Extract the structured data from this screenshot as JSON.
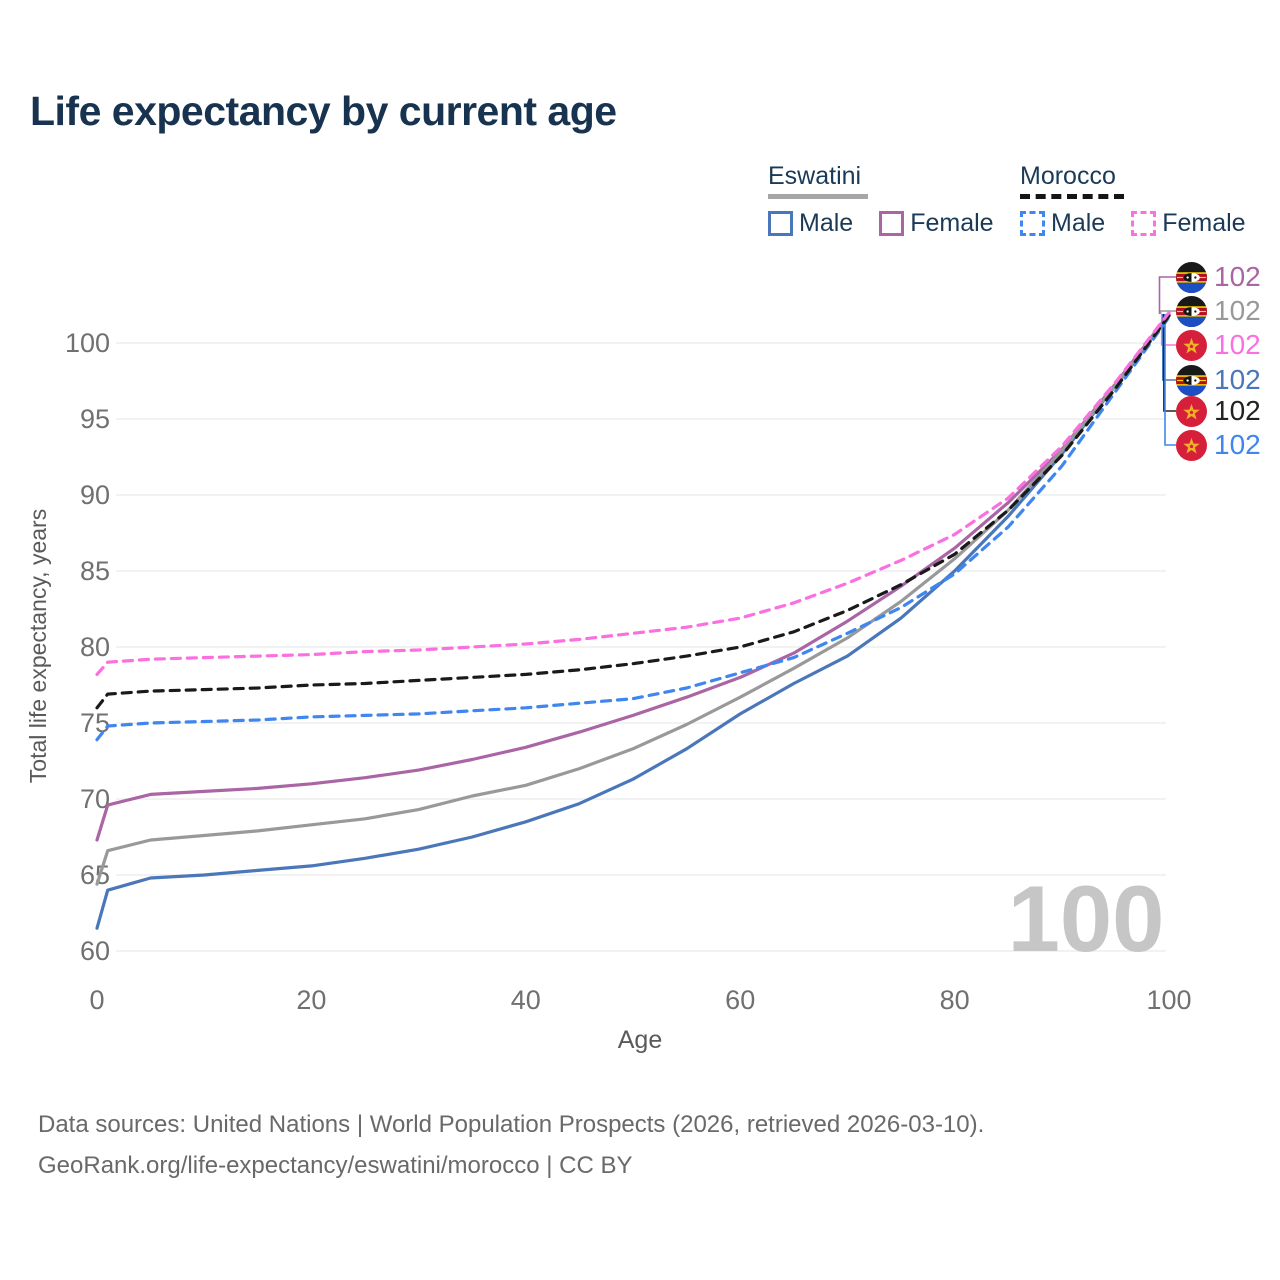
{
  "title": "Life expectancy by current age",
  "watermark": "100",
  "legend": {
    "groups": [
      {
        "name": "Eswatini",
        "line_style": "solid",
        "underline_color": "#a6a6a6",
        "items": [
          {
            "label": "Male",
            "color": "#4a77b9"
          },
          {
            "label": "Female",
            "color": "#aa65a5"
          }
        ]
      },
      {
        "name": "Morocco",
        "line_style": "dashed",
        "underline_color": "#151515",
        "items": [
          {
            "label": "Male",
            "color": "#3f86f0"
          },
          {
            "label": "Female",
            "color": "#fb70e0"
          }
        ]
      }
    ]
  },
  "end_labels": [
    {
      "country": "Eswatini",
      "sex": "female",
      "value": "102",
      "color": "#aa65a5"
    },
    {
      "country": "Eswatini",
      "sex": "total",
      "value": "102",
      "color": "#999999"
    },
    {
      "country": "Morocco",
      "sex": "female",
      "value": "102",
      "color": "#fb70e0"
    },
    {
      "country": "Eswatini",
      "sex": "male",
      "value": "102",
      "color": "#4a77b9"
    },
    {
      "country": "Morocco",
      "sex": "total",
      "value": "102",
      "color": "#222222"
    },
    {
      "country": "Morocco",
      "sex": "male",
      "value": "102",
      "color": "#3f86f0"
    }
  ],
  "footer": {
    "line1": "Data sources: United Nations | World Population Prospects (2026, retrieved 2026-03-10).",
    "line2": "GeoRank.org/life-expectancy/eswatini/morocco | CC BY"
  },
  "chart_data": {
    "type": "line",
    "title": "Life expectancy by current age",
    "xlabel": "Age",
    "ylabel": "Total life expectancy, years",
    "x_ticks": [
      0,
      20,
      40,
      60,
      80,
      100
    ],
    "y_ticks": [
      60,
      65,
      70,
      75,
      80,
      85,
      90,
      95,
      100
    ],
    "xlim": [
      0,
      100
    ],
    "ylim": [
      58.5,
      103
    ],
    "grid": "horizontal",
    "legend_position": "top-right",
    "x": [
      0,
      1,
      5,
      10,
      15,
      20,
      25,
      30,
      35,
      40,
      45,
      50,
      55,
      60,
      65,
      70,
      75,
      80,
      85,
      90,
      95,
      100
    ],
    "series": [
      {
        "name": "Eswatini Male",
        "country": "Eswatini",
        "sex": "male",
        "style": "solid",
        "color": "#4a77b9",
        "values": [
          61.5,
          64.0,
          64.8,
          65.0,
          65.3,
          65.6,
          66.1,
          66.7,
          67.5,
          68.5,
          69.7,
          71.3,
          73.3,
          75.6,
          77.6,
          79.4,
          81.9,
          85.0,
          88.6,
          92.7,
          97.2,
          101.8
        ]
      },
      {
        "name": "Eswatini Female",
        "country": "Eswatini",
        "sex": "female",
        "style": "solid",
        "color": "#aa65a5",
        "values": [
          67.3,
          69.6,
          70.3,
          70.5,
          70.7,
          71.0,
          71.4,
          71.9,
          72.6,
          73.4,
          74.4,
          75.5,
          76.7,
          78.0,
          79.6,
          81.7,
          84.0,
          86.5,
          89.5,
          93.0,
          97.3,
          101.9
        ]
      },
      {
        "name": "Eswatini Both sexes",
        "country": "Eswatini",
        "sex": "total",
        "style": "solid",
        "color": "#999999",
        "values": [
          64.4,
          66.6,
          67.3,
          67.6,
          67.9,
          68.3,
          68.7,
          69.3,
          70.2,
          70.9,
          72.0,
          73.3,
          74.9,
          76.7,
          78.6,
          80.6,
          83.0,
          85.8,
          89.0,
          92.9,
          97.2,
          101.8
        ]
      },
      {
        "name": "Morocco Male",
        "country": "Morocco",
        "sex": "male",
        "style": "dashed",
        "color": "#3f86f0",
        "values": [
          73.9,
          74.8,
          75.0,
          75.1,
          75.2,
          75.4,
          75.5,
          75.6,
          75.8,
          76.0,
          76.3,
          76.6,
          77.3,
          78.3,
          79.3,
          80.9,
          82.6,
          84.8,
          87.9,
          91.9,
          96.8,
          101.7
        ]
      },
      {
        "name": "Morocco Both sexes",
        "country": "Morocco",
        "sex": "total",
        "style": "dashed",
        "color": "#1a1a1a",
        "values": [
          76.0,
          76.9,
          77.1,
          77.2,
          77.3,
          77.5,
          77.6,
          77.8,
          78.0,
          78.2,
          78.5,
          78.9,
          79.4,
          80.0,
          81.0,
          82.4,
          84.1,
          86.1,
          89.0,
          92.6,
          97.0,
          101.8
        ]
      },
      {
        "name": "Morocco Female",
        "country": "Morocco",
        "sex": "female",
        "style": "dashed",
        "color": "#fb70e0",
        "values": [
          78.2,
          79.0,
          79.2,
          79.3,
          79.4,
          79.5,
          79.7,
          79.8,
          80.0,
          80.2,
          80.5,
          80.9,
          81.3,
          81.9,
          82.9,
          84.2,
          85.7,
          87.4,
          89.8,
          93.2,
          97.4,
          102.0
        ]
      }
    ]
  }
}
